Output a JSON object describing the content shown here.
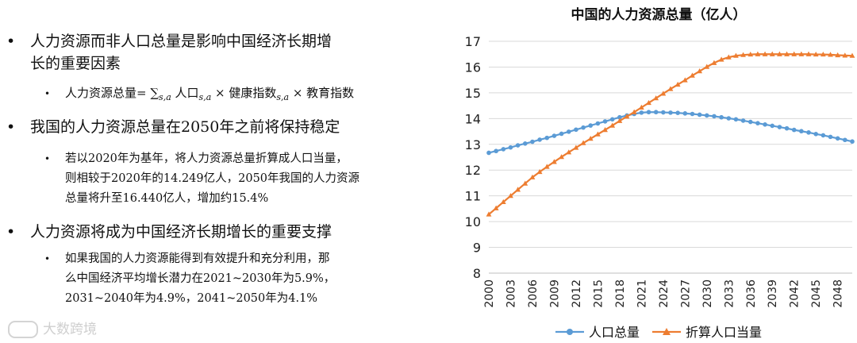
{
  "bullets": {
    "b1": "人力资源而非人口总量是影响中国经济长期增\n长的重要因素",
    "f1_prefix": "人力资源总量= ∑",
    "f1_sub1": "s,a",
    "f1_mid1": "人口",
    "f1_sub2": "s,a",
    "f1_mid2": " × 健康指数",
    "f1_sub3": "s,a",
    "f1_suffix": " × 教育指数",
    "b2": "我国的人力资源总量在2050年之前将保持稳定",
    "s2": "若以2020年为基年，将人力资源总量折算成人口当量，\n则相较于2020年的14.249亿人，2050年我国的人力资源\n总量将升至16.440亿人，增加约15.4%",
    "b3": "人力资源将成为中国经济长期增长的重要支撑",
    "s3": "如果我国的人力资源能得到有效提升和充分利用，那\n么中国经济平均增长潜力在2021~2030年为5.9%，\n2031~2040年为4.9%，2041~2050年为4.1%",
    "bullet_glyph": "•"
  },
  "watermark": "大数跨境",
  "chart_data": {
    "type": "line",
    "title": "中国的人力资源总量（亿人）",
    "xlabel": "",
    "ylabel": "",
    "ylim": [
      8,
      17
    ],
    "yticks": [
      8,
      9,
      10,
      11,
      12,
      13,
      14,
      15,
      16,
      17
    ],
    "x": [
      2000,
      2001,
      2002,
      2003,
      2004,
      2005,
      2006,
      2007,
      2008,
      2009,
      2010,
      2011,
      2012,
      2013,
      2014,
      2015,
      2016,
      2017,
      2018,
      2019,
      2020,
      2021,
      2022,
      2023,
      2024,
      2025,
      2026,
      2027,
      2028,
      2029,
      2030,
      2031,
      2032,
      2033,
      2034,
      2035,
      2036,
      2037,
      2038,
      2039,
      2040,
      2041,
      2042,
      2043,
      2044,
      2045,
      2046,
      2047,
      2048,
      2049,
      2050
    ],
    "xticks": [
      "2000",
      "2003",
      "2006",
      "2009",
      "2012",
      "2015",
      "2018",
      "2021",
      "2024",
      "2027",
      "2030",
      "2033",
      "2036",
      "2039",
      "2042",
      "2045",
      "2048"
    ],
    "grid": "horizontal",
    "legend": "bottom",
    "series": [
      {
        "name": "人口总量",
        "color": "#5B9BD5",
        "marker": "circle",
        "values": [
          12.67,
          12.74,
          12.81,
          12.88,
          12.96,
          13.03,
          13.1,
          13.18,
          13.25,
          13.33,
          13.41,
          13.49,
          13.57,
          13.65,
          13.73,
          13.81,
          13.89,
          13.97,
          14.05,
          14.12,
          14.18,
          14.23,
          14.25,
          14.25,
          14.24,
          14.23,
          14.22,
          14.2,
          14.18,
          14.15,
          14.12,
          14.09,
          14.05,
          14.01,
          13.97,
          13.92,
          13.87,
          13.82,
          13.77,
          13.72,
          13.67,
          13.62,
          13.56,
          13.51,
          13.46,
          13.4,
          13.35,
          13.29,
          13.23,
          13.17,
          13.11
        ]
      },
      {
        "name": "折算人口当量",
        "color": "#ED7D31",
        "marker": "triangle",
        "values": [
          10.28,
          10.52,
          10.76,
          11.0,
          11.24,
          11.48,
          11.72,
          11.93,
          12.13,
          12.32,
          12.51,
          12.69,
          12.87,
          13.05,
          13.22,
          13.39,
          13.56,
          13.73,
          13.91,
          14.08,
          14.25,
          14.43,
          14.61,
          14.79,
          14.97,
          15.15,
          15.32,
          15.49,
          15.67,
          15.84,
          16.01,
          16.16,
          16.29,
          16.38,
          16.44,
          16.47,
          16.49,
          16.5,
          16.5,
          16.5,
          16.5,
          16.5,
          16.5,
          16.5,
          16.5,
          16.49,
          16.49,
          16.48,
          16.46,
          16.45,
          16.44
        ]
      }
    ]
  }
}
